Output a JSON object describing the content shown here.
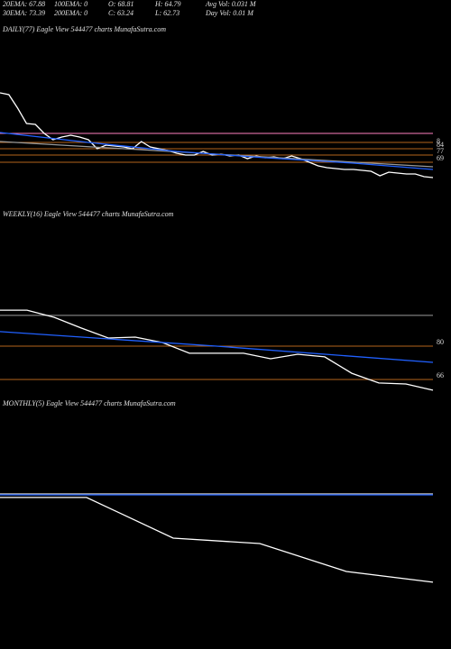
{
  "header": [
    [
      "20EMA: 67.88",
      "100EMA: 0",
      "O: 68.81",
      "H: 64.79",
      "Avg Vol: 0.031 M"
    ],
    [
      "30EMA: 73.39",
      "200EMA: 0",
      "C: 63.24",
      "L: 62.73",
      "Day Vol: 0.01 M"
    ]
  ],
  "chart_data": [
    {
      "type": "line",
      "title": "DAILY(77) Eagle  View  544477 charts MunafaSutra.com",
      "xlim": [
        0,
        49
      ],
      "ylim": [
        34,
        219
      ],
      "yticks": [
        84,
        77,
        69
      ],
      "tick_color": "#b5651d",
      "levels": [
        {
          "value": 101,
          "color": "#ff80c0"
        },
        {
          "value": 91,
          "color": "#b5651d"
        }
      ],
      "annotations": [
        "8"
      ],
      "series": [
        {
          "color": "#ffffff",
          "values": [
            146,
            144,
            129,
            112,
            111,
            101,
            94,
            97,
            99,
            97,
            94,
            84,
            88,
            87,
            86,
            84,
            92,
            86,
            84,
            82,
            79,
            77,
            77,
            81,
            77,
            78,
            76,
            77,
            73,
            76,
            74,
            75,
            73,
            76,
            73,
            69,
            65,
            63,
            62,
            61,
            61,
            60,
            59,
            54,
            58,
            57,
            56,
            56,
            53,
            52
          ]
        },
        {
          "color": "#9a9a9a",
          "x": [
            0,
            49
          ],
          "values": [
            92,
            64
          ]
        },
        {
          "color": "#2060ff",
          "x": [
            0,
            10,
            20,
            30,
            40,
            49
          ],
          "values": [
            102,
            91,
            81,
            74,
            68,
            61
          ]
        }
      ]
    },
    {
      "type": "line",
      "title": "WEEKLY(16) Eagle  View  544477 charts MunafaSutra.com",
      "xlim": [
        0,
        16
      ],
      "ylim": [
        58.8,
        136.4
      ],
      "yticks": [
        80,
        66
      ],
      "tick_color": "#b5651d",
      "levels": [
        {
          "value": 92.9,
          "color": "#9a9a9a"
        }
      ],
      "series": [
        {
          "color": "#ffffff",
          "values": [
            95.1,
            95.1,
            92.1,
            87.6,
            83.4,
            83.8,
            81.5,
            77.0,
            77.0,
            77.0,
            74.7,
            76.6,
            75.5,
            68.6,
            64.5,
            64.1,
            61.5
          ]
        },
        {
          "color": "#2060ff",
          "x": [
            0,
            8,
            16
          ],
          "values": [
            86.1,
            80,
            73.2
          ]
        }
      ]
    },
    {
      "type": "line",
      "title": "MONTHLY(5) Eagle  View  544477 charts MunafaSutra.com",
      "xlim": [
        0,
        5
      ],
      "ylim": [
        40,
        140
      ],
      "series": [
        {
          "color": "#bbbbbb",
          "x": [
            0,
            5
          ],
          "values": [
            101.9,
            101.9
          ]
        },
        {
          "color": "#2060ff",
          "x": [
            0,
            5
          ],
          "values": [
            101.5,
            101.5
          ]
        },
        {
          "color": "#ffffff",
          "values": [
            100.4,
            100.4,
            83.7,
            81.5,
            70.0,
            65.6
          ]
        }
      ]
    }
  ]
}
